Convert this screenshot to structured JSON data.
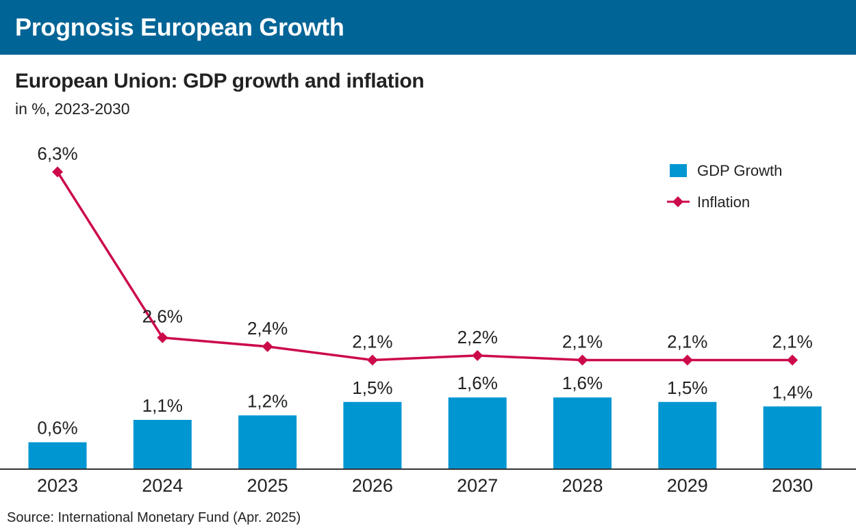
{
  "header": {
    "title": "Prognosis European Growth"
  },
  "chart_data": {
    "type": "bar+line",
    "title": "European Union: GDP growth and inflation",
    "subtitle": "in %, 2023-2030",
    "categories": [
      "2023",
      "2024",
      "2025",
      "2026",
      "2027",
      "2028",
      "2029",
      "2030"
    ],
    "series": [
      {
        "name": "GDP Growth",
        "type": "bar",
        "color": "#0096d2",
        "values": [
          0.6,
          1.1,
          1.2,
          1.5,
          1.6,
          1.6,
          1.5,
          1.4
        ],
        "labels": [
          "0,6%",
          "1,1%",
          "1,2%",
          "1,5%",
          "1,6%",
          "1,6%",
          "1,5%",
          "1,4%"
        ]
      },
      {
        "name": "Inflation",
        "type": "line",
        "color": "#cc0a4a",
        "marker": "diamond",
        "values": [
          6.3,
          2.6,
          2.4,
          2.1,
          2.2,
          2.1,
          2.1,
          2.1
        ],
        "labels": [
          "6,3%",
          "2.6%",
          "2,4%",
          "2,1%",
          "2,2%",
          "2,1%",
          "2,1%",
          "2,1%"
        ]
      }
    ],
    "legend": "top-right",
    "grid": false,
    "source": "Source: International Monetary Fund (Apr. 2025)"
  }
}
